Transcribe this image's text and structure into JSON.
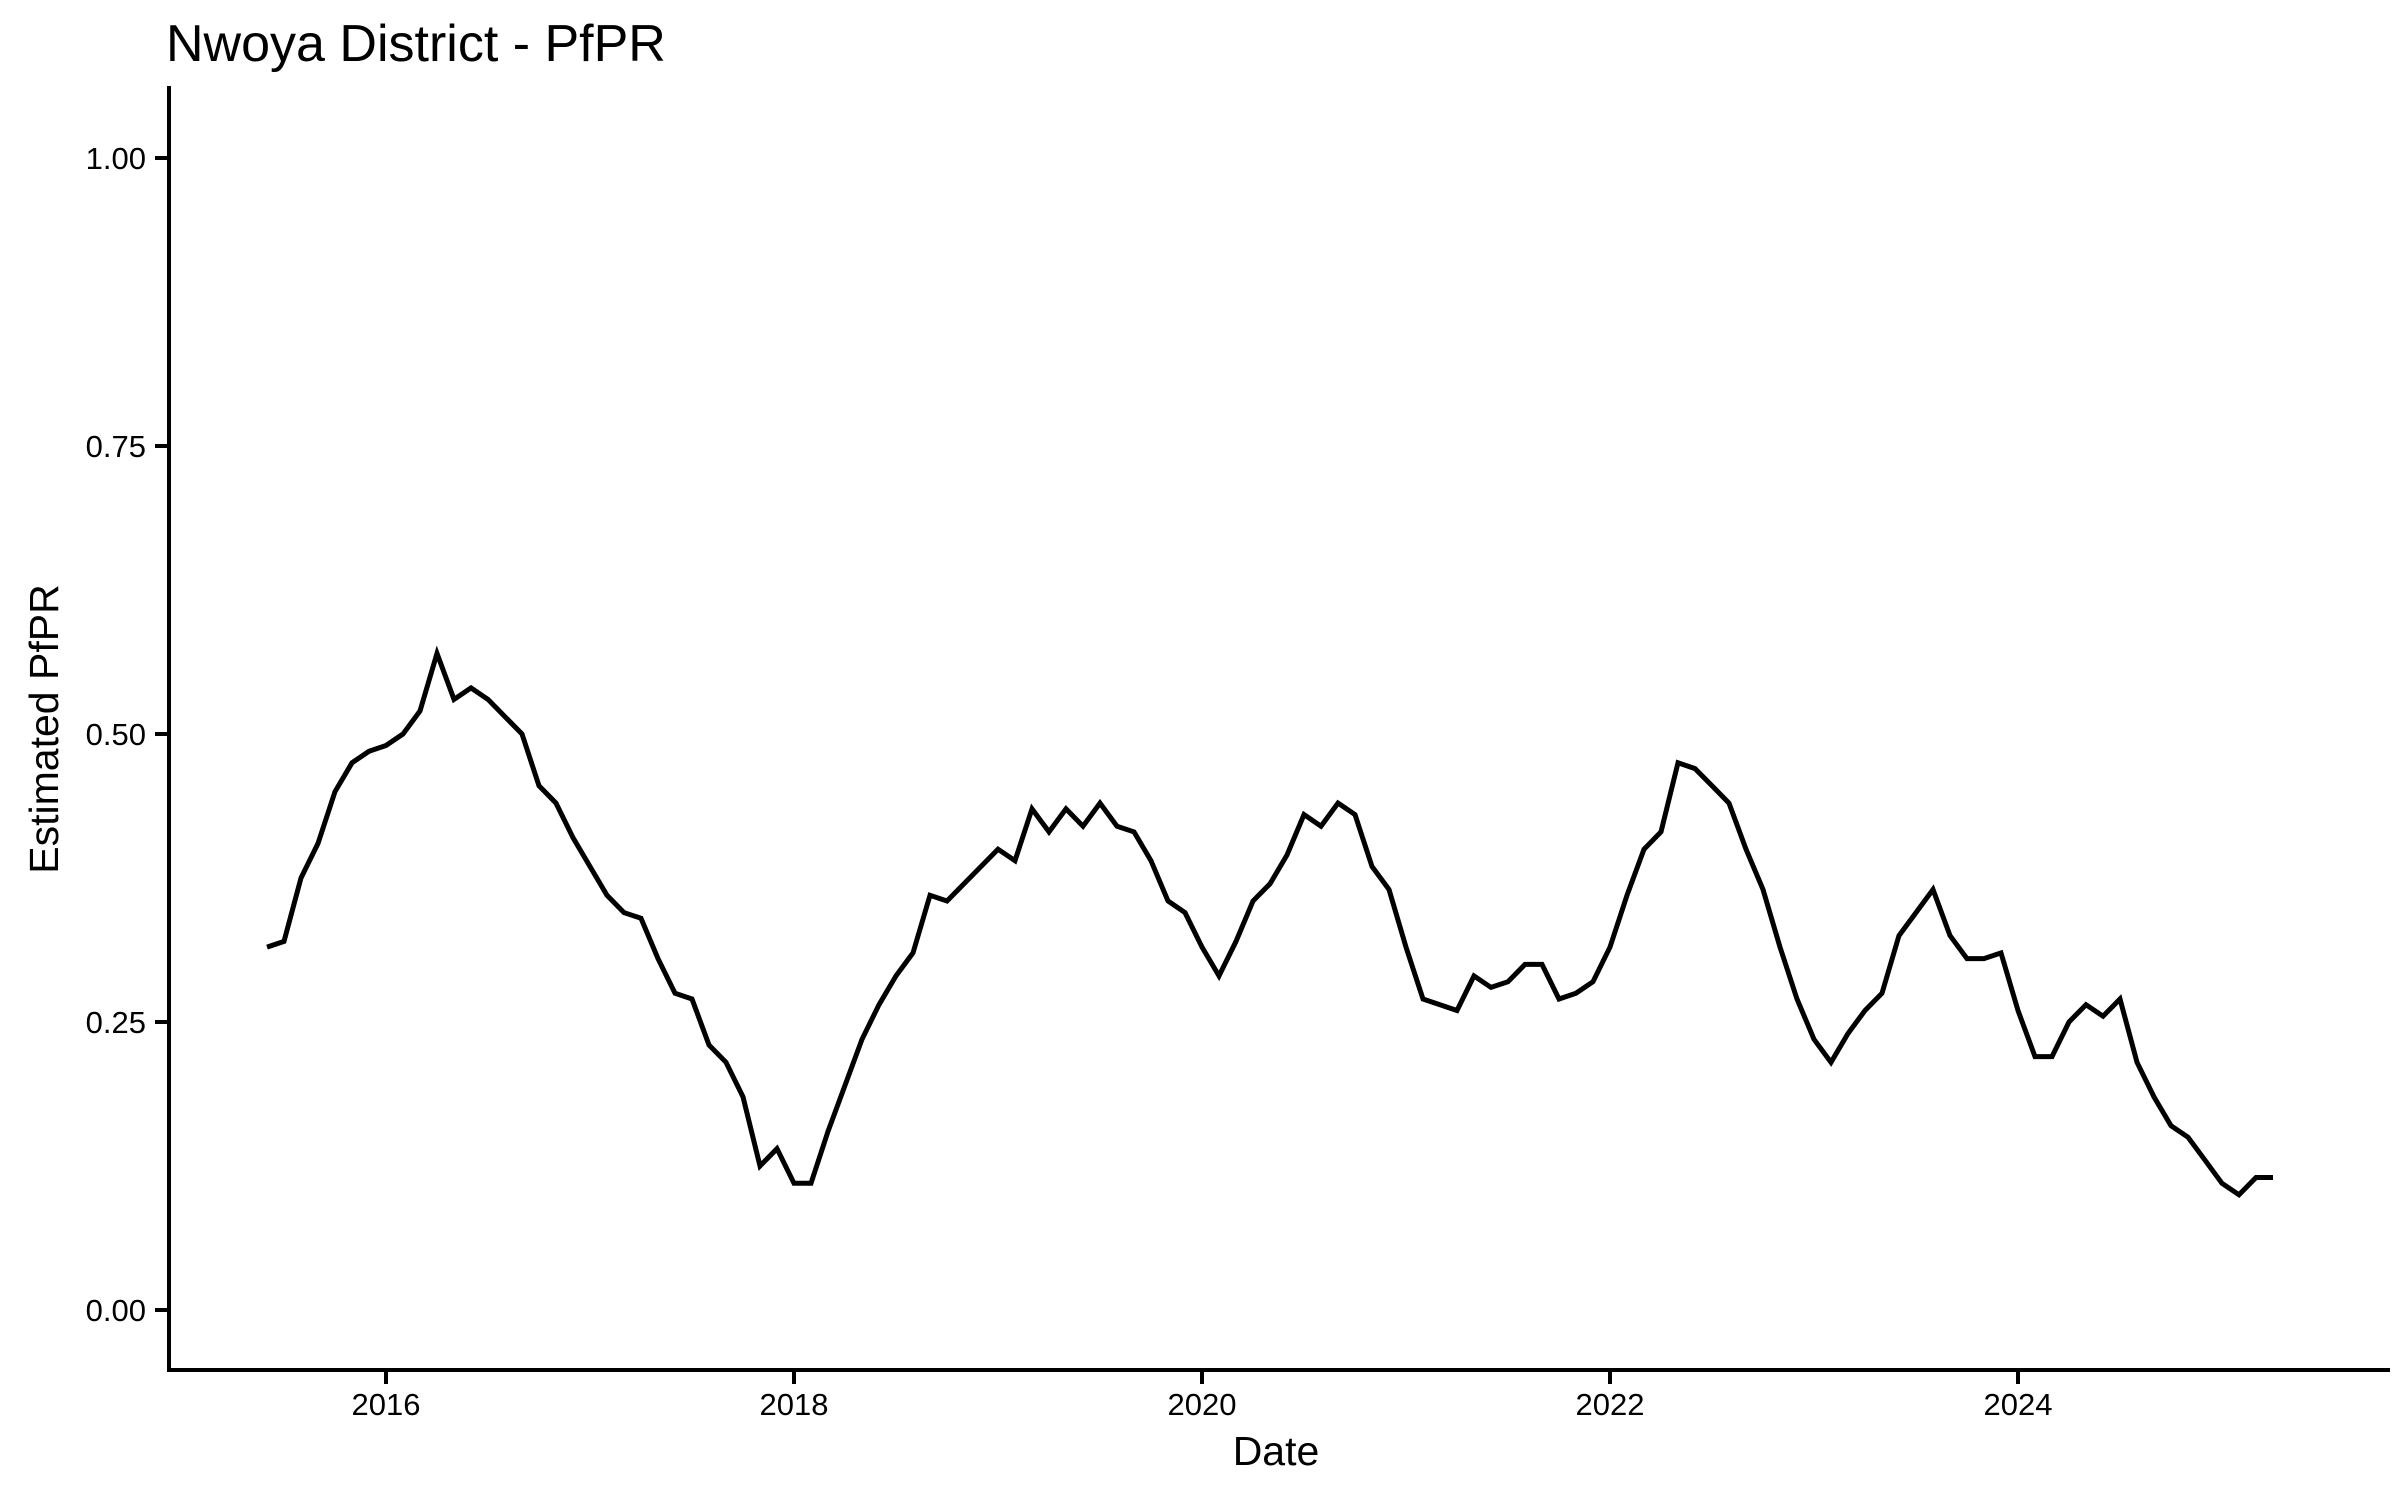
{
  "page": {
    "background_color": "#FFFFFF",
    "title": "Nwoya District - PfPR"
  },
  "chart_data": {
    "type": "line",
    "title": "Nwoya District - PfPR",
    "xlabel": "Date",
    "ylabel": "Estimated PfPR",
    "x_tick_labels": [
      "2016",
      "2018",
      "2020",
      "2022",
      "2024"
    ],
    "y_tick_labels": [
      "0.00",
      "0.25",
      "0.50",
      "0.75",
      "1.00"
    ],
    "x_range": [
      "2015-06",
      "2025-04"
    ],
    "ylim": [
      0.0,
      1.0
    ],
    "grid": false,
    "legend": false,
    "line_color": "#000000",
    "background": "#FFFFFF",
    "series": [
      {
        "name": "Estimated PfPR",
        "start": "2015-06",
        "frequency": "monthly",
        "values": [
          0.315,
          0.32,
          0.375,
          0.405,
          0.45,
          0.475,
          0.485,
          0.49,
          0.5,
          0.52,
          0.57,
          0.53,
          0.54,
          0.53,
          0.515,
          0.5,
          0.455,
          0.44,
          0.41,
          0.385,
          0.36,
          0.345,
          0.34,
          0.305,
          0.275,
          0.27,
          0.23,
          0.215,
          0.185,
          0.125,
          0.14,
          0.11,
          0.11,
          0.155,
          0.195,
          0.235,
          0.265,
          0.29,
          0.31,
          0.36,
          0.355,
          0.37,
          0.385,
          0.4,
          0.39,
          0.435,
          0.415,
          0.435,
          0.42,
          0.44,
          0.42,
          0.415,
          0.39,
          0.355,
          0.345,
          0.315,
          0.29,
          0.32,
          0.355,
          0.37,
          0.395,
          0.43,
          0.42,
          0.44,
          0.43,
          0.385,
          0.365,
          0.315,
          0.27,
          0.265,
          0.26,
          0.29,
          0.28,
          0.285,
          0.3,
          0.3,
          0.27,
          0.275,
          0.285,
          0.315,
          0.36,
          0.4,
          0.415,
          0.475,
          0.47,
          0.455,
          0.44,
          0.4,
          0.365,
          0.315,
          0.27,
          0.235,
          0.215,
          0.24,
          0.26,
          0.275,
          0.325,
          0.345,
          0.365,
          0.325,
          0.305,
          0.305,
          0.31,
          0.26,
          0.22,
          0.22,
          0.25,
          0.265,
          0.255,
          0.27,
          0.215,
          0.185,
          0.16,
          0.15,
          0.13,
          0.11,
          0.1,
          0.115,
          0.115
        ]
      }
    ]
  }
}
